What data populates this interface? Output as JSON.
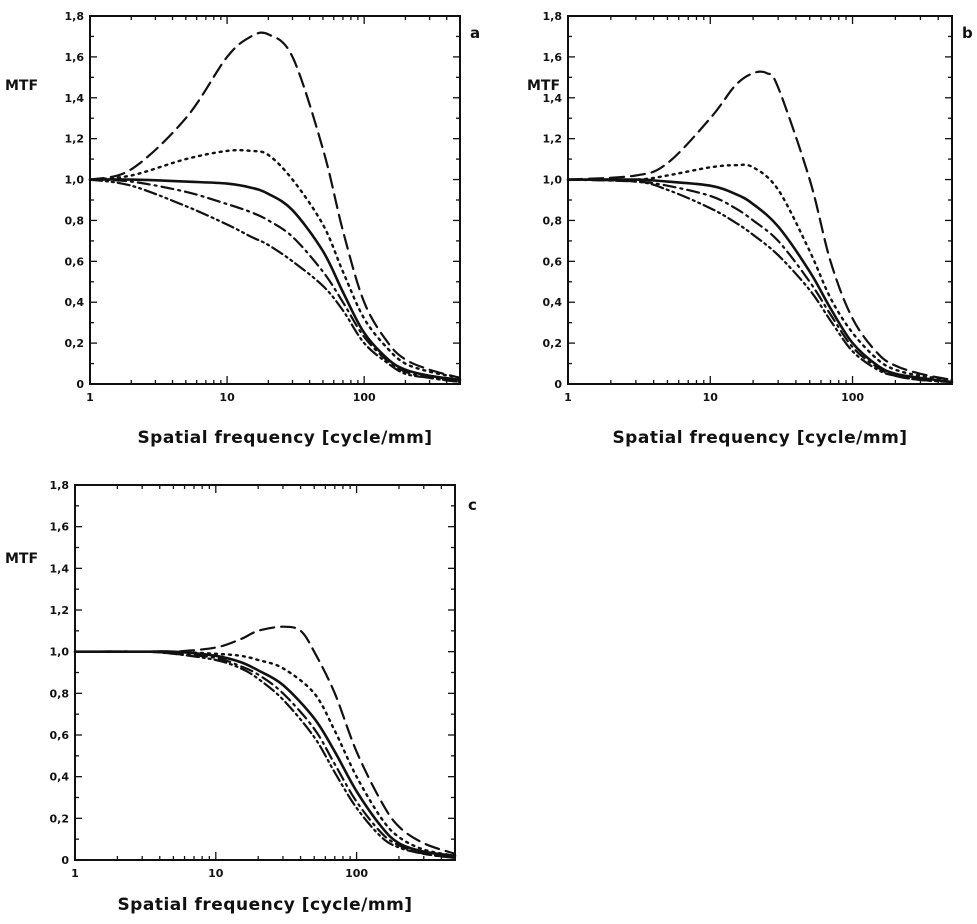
{
  "chart_data": [
    {
      "type": "line",
      "panel_label": "a",
      "xlabel": "Spatial frequency [cycle/mm]",
      "ylabel": "MTF",
      "x_scale": "log",
      "xlim": [
        1,
        500
      ],
      "ylim": [
        0,
        1.8
      ],
      "x_tick_labels": [
        "1",
        "10",
        "100"
      ],
      "y_tick_labels": [
        "0",
        "0,2",
        "0,4",
        "0,6",
        "0,8",
        "1,0",
        "1,2",
        "1,4",
        "1,6",
        "1,8"
      ],
      "grid": false,
      "series": [
        {
          "style": "dashed",
          "x": [
            1,
            2,
            5,
            10,
            15,
            20,
            30,
            50,
            70,
            100,
            150,
            200,
            300,
            500
          ],
          "y": [
            1.0,
            1.05,
            1.3,
            1.6,
            1.7,
            1.71,
            1.6,
            1.15,
            0.75,
            0.4,
            0.2,
            0.12,
            0.07,
            0.03
          ]
        },
        {
          "style": "dotted",
          "x": [
            1,
            2,
            5,
            10,
            15,
            20,
            30,
            50,
            70,
            100,
            150,
            200,
            300,
            500
          ],
          "y": [
            1.0,
            1.02,
            1.1,
            1.14,
            1.14,
            1.12,
            1.0,
            0.78,
            0.55,
            0.32,
            0.17,
            0.1,
            0.06,
            0.03
          ]
        },
        {
          "style": "solid",
          "x": [
            1,
            2,
            5,
            10,
            15,
            20,
            30,
            50,
            70,
            100,
            150,
            200,
            300,
            500
          ],
          "y": [
            1.0,
            1.0,
            0.99,
            0.98,
            0.96,
            0.93,
            0.85,
            0.65,
            0.45,
            0.25,
            0.12,
            0.07,
            0.04,
            0.02
          ]
        },
        {
          "style": "dash-dot",
          "x": [
            1,
            2,
            5,
            10,
            15,
            20,
            30,
            50,
            70,
            100,
            150,
            200,
            300,
            500
          ],
          "y": [
            1.0,
            0.99,
            0.94,
            0.88,
            0.84,
            0.8,
            0.72,
            0.55,
            0.4,
            0.23,
            0.11,
            0.06,
            0.03,
            0.01
          ]
        },
        {
          "style": "dash-dot-dot",
          "x": [
            1,
            2,
            5,
            10,
            15,
            20,
            30,
            50,
            70,
            100,
            150,
            200,
            300,
            500
          ],
          "y": [
            1.0,
            0.97,
            0.87,
            0.78,
            0.72,
            0.68,
            0.6,
            0.48,
            0.36,
            0.2,
            0.1,
            0.05,
            0.03,
            0.01
          ]
        }
      ]
    },
    {
      "type": "line",
      "panel_label": "b",
      "xlabel": "Spatial frequency [cycle/mm]",
      "ylabel": "MTF",
      "x_scale": "log",
      "xlim": [
        1,
        500
      ],
      "ylim": [
        0,
        1.8
      ],
      "x_tick_labels": [
        "1",
        "10",
        "100"
      ],
      "y_tick_labels": [
        "0",
        "0,2",
        "0,4",
        "0,6",
        "0,8",
        "1,0",
        "1,2",
        "1,4",
        "1,6",
        "1,8"
      ],
      "grid": false,
      "series": [
        {
          "style": "dashed",
          "x": [
            1,
            3,
            5,
            10,
            15,
            20,
            25,
            30,
            50,
            70,
            100,
            150,
            200,
            300,
            500
          ],
          "y": [
            1.0,
            1.02,
            1.08,
            1.3,
            1.46,
            1.52,
            1.52,
            1.45,
            1.0,
            0.6,
            0.32,
            0.15,
            0.09,
            0.05,
            0.02
          ]
        },
        {
          "style": "dotted",
          "x": [
            1,
            3,
            5,
            10,
            15,
            20,
            30,
            50,
            70,
            100,
            150,
            200,
            300,
            500
          ],
          "y": [
            1.0,
            1.0,
            1.02,
            1.06,
            1.07,
            1.06,
            0.95,
            0.65,
            0.42,
            0.25,
            0.12,
            0.07,
            0.04,
            0.02
          ]
        },
        {
          "style": "solid",
          "x": [
            1,
            3,
            5,
            10,
            15,
            20,
            30,
            50,
            70,
            100,
            150,
            200,
            300,
            500
          ],
          "y": [
            1.0,
            1.0,
            0.99,
            0.97,
            0.93,
            0.88,
            0.77,
            0.55,
            0.37,
            0.2,
            0.09,
            0.05,
            0.03,
            0.01
          ]
        },
        {
          "style": "dash-dot",
          "x": [
            1,
            3,
            5,
            10,
            15,
            20,
            30,
            50,
            70,
            100,
            150,
            200,
            300,
            500
          ],
          "y": [
            1.0,
            0.99,
            0.97,
            0.92,
            0.86,
            0.8,
            0.7,
            0.5,
            0.34,
            0.18,
            0.08,
            0.04,
            0.02,
            0.01
          ]
        },
        {
          "style": "dash-dot-dot",
          "x": [
            1,
            3,
            5,
            10,
            15,
            20,
            30,
            50,
            70,
            100,
            150,
            200,
            300,
            500
          ],
          "y": [
            1.0,
            0.99,
            0.95,
            0.86,
            0.79,
            0.73,
            0.63,
            0.46,
            0.31,
            0.16,
            0.07,
            0.04,
            0.02,
            0.01
          ]
        }
      ]
    },
    {
      "type": "line",
      "panel_label": "c",
      "xlabel": "Spatial frequency [cycle/mm]",
      "ylabel": "MTF",
      "x_scale": "log",
      "xlim": [
        1,
        500
      ],
      "ylim": [
        0,
        1.8
      ],
      "x_tick_labels": [
        "1",
        "10",
        "100"
      ],
      "y_tick_labels": [
        "0",
        "0,2",
        "0,4",
        "0,6",
        "0,8",
        "1,0",
        "1,2",
        "1,4",
        "1,6",
        "1,8"
      ],
      "grid": false,
      "series": [
        {
          "style": "dashed",
          "x": [
            1,
            3,
            5,
            10,
            15,
            20,
            30,
            40,
            50,
            70,
            100,
            150,
            200,
            300,
            500
          ],
          "y": [
            1.0,
            1.0,
            1.0,
            1.02,
            1.06,
            1.1,
            1.12,
            1.1,
            1.0,
            0.8,
            0.52,
            0.28,
            0.16,
            0.08,
            0.03
          ]
        },
        {
          "style": "dotted",
          "x": [
            1,
            3,
            5,
            10,
            15,
            20,
            30,
            50,
            70,
            100,
            150,
            200,
            300,
            500
          ],
          "y": [
            1.0,
            1.0,
            1.0,
            0.99,
            0.98,
            0.96,
            0.92,
            0.8,
            0.62,
            0.4,
            0.2,
            0.11,
            0.05,
            0.02
          ]
        },
        {
          "style": "solid",
          "x": [
            1,
            3,
            5,
            10,
            15,
            20,
            30,
            50,
            70,
            100,
            150,
            200,
            300,
            500
          ],
          "y": [
            1.0,
            1.0,
            1.0,
            0.98,
            0.95,
            0.91,
            0.84,
            0.68,
            0.52,
            0.33,
            0.16,
            0.08,
            0.04,
            0.02
          ]
        },
        {
          "style": "dash-dot",
          "x": [
            1,
            3,
            5,
            10,
            15,
            20,
            30,
            50,
            70,
            100,
            150,
            200,
            300,
            500
          ],
          "y": [
            1.0,
            1.0,
            0.99,
            0.97,
            0.93,
            0.89,
            0.8,
            0.63,
            0.46,
            0.28,
            0.13,
            0.07,
            0.03,
            0.01
          ]
        },
        {
          "style": "dash-dot-dot",
          "x": [
            1,
            3,
            5,
            10,
            15,
            20,
            30,
            50,
            70,
            100,
            150,
            200,
            300,
            500
          ],
          "y": [
            1.0,
            1.0,
            0.99,
            0.96,
            0.92,
            0.87,
            0.77,
            0.59,
            0.42,
            0.25,
            0.11,
            0.06,
            0.03,
            0.01
          ]
        }
      ]
    }
  ],
  "styles": {
    "line_color": "#111111",
    "axis_color": "#111111",
    "background": "#ffffff"
  }
}
